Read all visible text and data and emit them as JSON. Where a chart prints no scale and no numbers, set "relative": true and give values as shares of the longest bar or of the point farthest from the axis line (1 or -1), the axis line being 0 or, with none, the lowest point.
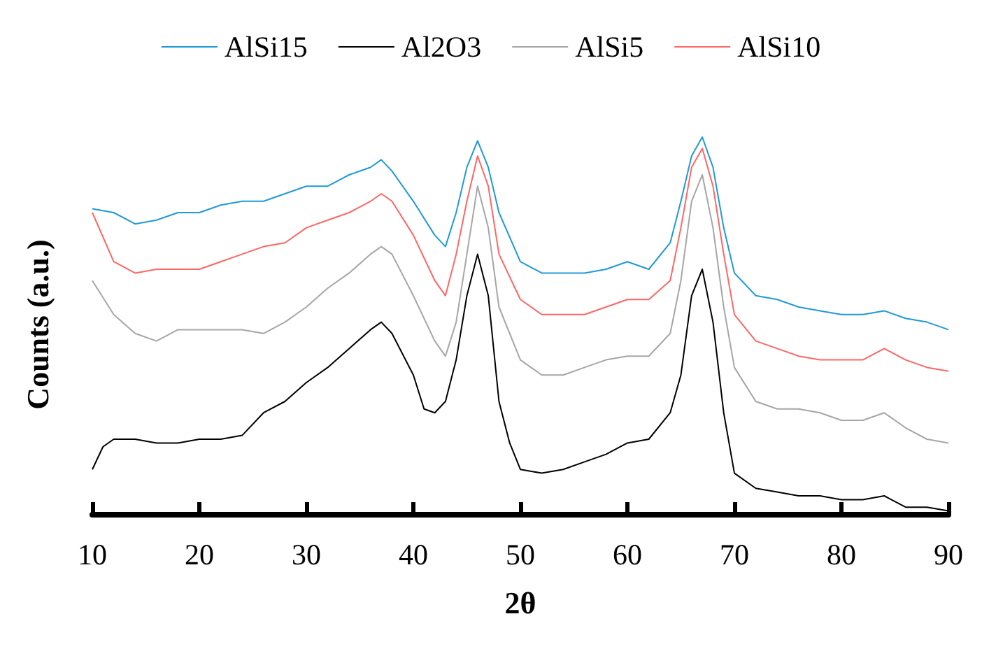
{
  "chart_data": {
    "type": "line",
    "relative": true,
    "xlabel": "2θ",
    "ylabel": "Counts (a.u.)",
    "xlim": [
      10,
      90
    ],
    "xticks": [
      10,
      20,
      30,
      40,
      50,
      60,
      70,
      80,
      90
    ],
    "legend": "top",
    "marker": "none",
    "line_style": "solid",
    "grid": false,
    "series": [
      {
        "name": "AlSi15",
        "color": "#1f9ad6",
        "x": [
          10,
          12,
          14,
          16,
          18,
          20,
          22,
          24,
          26,
          28,
          30,
          32,
          34,
          36,
          37,
          38,
          40,
          42,
          43,
          44,
          45,
          46,
          47,
          48,
          50,
          52,
          54,
          56,
          58,
          60,
          62,
          64,
          65,
          66,
          67,
          68,
          69,
          70,
          72,
          74,
          76,
          78,
          80,
          82,
          84,
          86,
          88,
          90
        ],
        "values": [
          0.81,
          0.8,
          0.77,
          0.78,
          0.8,
          0.8,
          0.82,
          0.83,
          0.83,
          0.85,
          0.87,
          0.87,
          0.9,
          0.92,
          0.94,
          0.91,
          0.83,
          0.74,
          0.71,
          0.8,
          0.92,
          0.99,
          0.92,
          0.8,
          0.67,
          0.64,
          0.64,
          0.64,
          0.65,
          0.67,
          0.65,
          0.72,
          0.83,
          0.95,
          1.0,
          0.92,
          0.76,
          0.64,
          0.58,
          0.57,
          0.55,
          0.54,
          0.53,
          0.53,
          0.54,
          0.52,
          0.51,
          0.49
        ]
      },
      {
        "name": "Al2O3",
        "color": "#000000",
        "x": [
          10,
          11,
          12,
          14,
          16,
          18,
          20,
          22,
          24,
          26,
          28,
          30,
          32,
          34,
          36,
          37,
          38,
          40,
          41,
          42,
          43,
          44,
          45,
          46,
          47,
          48,
          49,
          50,
          52,
          54,
          56,
          58,
          60,
          62,
          64,
          65,
          66,
          67,
          68,
          69,
          70,
          72,
          74,
          76,
          78,
          80,
          82,
          84,
          86,
          88,
          90
        ],
        "values": [
          0.12,
          0.18,
          0.2,
          0.2,
          0.19,
          0.19,
          0.2,
          0.2,
          0.21,
          0.27,
          0.3,
          0.35,
          0.39,
          0.44,
          0.49,
          0.51,
          0.48,
          0.37,
          0.28,
          0.27,
          0.3,
          0.41,
          0.58,
          0.69,
          0.58,
          0.3,
          0.19,
          0.12,
          0.11,
          0.12,
          0.14,
          0.16,
          0.19,
          0.2,
          0.27,
          0.37,
          0.58,
          0.65,
          0.51,
          0.27,
          0.11,
          0.07,
          0.06,
          0.05,
          0.05,
          0.04,
          0.04,
          0.05,
          0.02,
          0.02,
          0.01
        ]
      },
      {
        "name": "AlSi5",
        "color": "#a6a6a6",
        "x": [
          10,
          12,
          14,
          16,
          18,
          20,
          22,
          24,
          26,
          28,
          30,
          32,
          34,
          36,
          37,
          38,
          40,
          42,
          43,
          44,
          45,
          46,
          47,
          48,
          50,
          52,
          54,
          56,
          58,
          60,
          62,
          64,
          65,
          66,
          67,
          68,
          69,
          70,
          72,
          74,
          76,
          78,
          80,
          82,
          84,
          86,
          88,
          90
        ],
        "values": [
          0.62,
          0.53,
          0.48,
          0.46,
          0.49,
          0.49,
          0.49,
          0.49,
          0.48,
          0.51,
          0.55,
          0.6,
          0.64,
          0.69,
          0.71,
          0.69,
          0.58,
          0.46,
          0.42,
          0.51,
          0.69,
          0.87,
          0.76,
          0.55,
          0.41,
          0.37,
          0.37,
          0.39,
          0.41,
          0.42,
          0.42,
          0.48,
          0.62,
          0.83,
          0.9,
          0.76,
          0.55,
          0.39,
          0.3,
          0.28,
          0.28,
          0.27,
          0.25,
          0.25,
          0.27,
          0.23,
          0.2,
          0.19
        ]
      },
      {
        "name": "AlSi10",
        "color": "#ff6666",
        "x": [
          10,
          12,
          14,
          16,
          18,
          20,
          22,
          24,
          26,
          28,
          30,
          32,
          34,
          36,
          37,
          38,
          40,
          42,
          43,
          44,
          45,
          46,
          47,
          48,
          50,
          52,
          54,
          56,
          58,
          60,
          62,
          64,
          65,
          66,
          67,
          68,
          69,
          70,
          72,
          74,
          76,
          78,
          80,
          82,
          84,
          86,
          88,
          90
        ],
        "values": [
          0.8,
          0.67,
          0.64,
          0.65,
          0.65,
          0.65,
          0.67,
          0.69,
          0.71,
          0.72,
          0.76,
          0.78,
          0.8,
          0.83,
          0.85,
          0.83,
          0.74,
          0.62,
          0.58,
          0.69,
          0.83,
          0.95,
          0.87,
          0.69,
          0.57,
          0.53,
          0.53,
          0.53,
          0.55,
          0.57,
          0.57,
          0.62,
          0.76,
          0.92,
          0.97,
          0.87,
          0.69,
          0.53,
          0.46,
          0.44,
          0.42,
          0.41,
          0.41,
          0.41,
          0.44,
          0.41,
          0.39,
          0.38
        ]
      }
    ]
  }
}
